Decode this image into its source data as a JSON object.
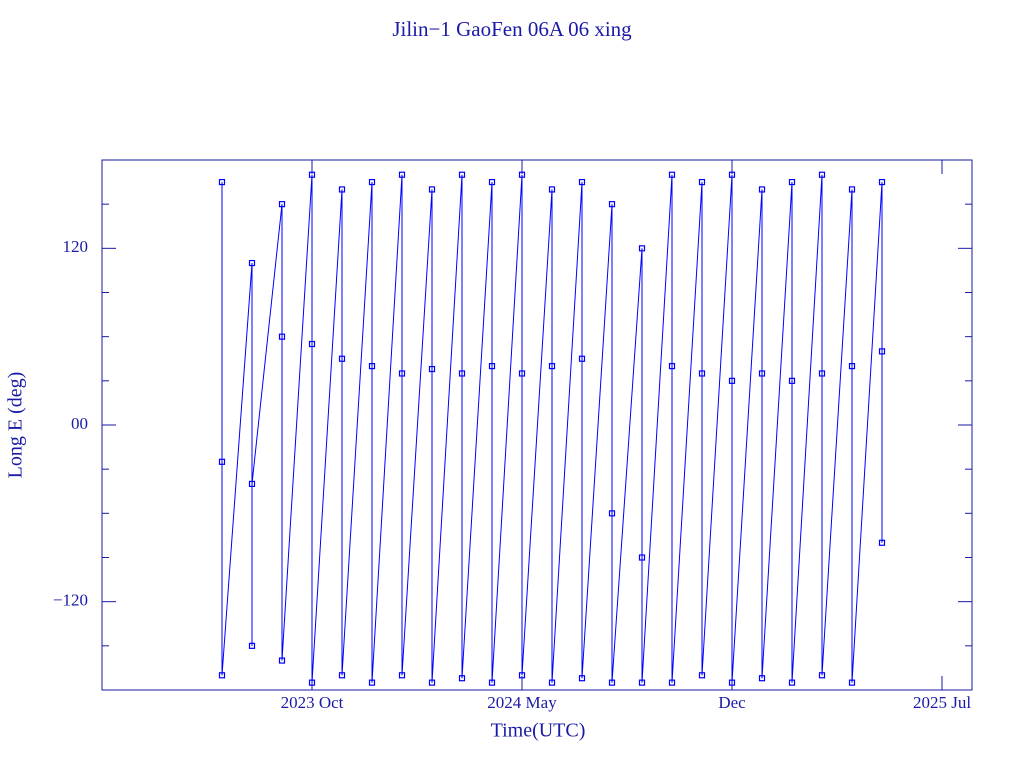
{
  "chart_data": {
    "type": "line",
    "title": "Jilin−1 GaoFen 06A 06 xing",
    "x_label": "Time(UTC)",
    "y_label": "Long E (deg)",
    "color": "#0000ff",
    "marker": "square",
    "xlim": [
      "2023-03",
      "2025-08"
    ],
    "xticks": [
      {
        "value": "2023-10",
        "label": "2023 Oct"
      },
      {
        "value": "2024-05",
        "label": "2024 May"
      },
      {
        "value": "2024-12",
        "label": "Dec"
      },
      {
        "value": "2025-07",
        "label": "2025 Jul"
      }
    ],
    "ylim": [
      -180,
      180
    ],
    "yticks": [
      {
        "value": -120,
        "label": "−120"
      },
      {
        "value": 0,
        "label": "00"
      },
      120
    ],
    "yminorticks": [
      -150,
      -90,
      -60,
      -30,
      30,
      60,
      90,
      150
    ],
    "x": [
      "2023-07",
      "2023-07",
      "2023-07",
      "2023-08",
      "2023-08",
      "2023-08",
      "2023-09",
      "2023-09",
      "2023-09",
      "2023-10",
      "2023-10",
      "2023-10",
      "2023-11",
      "2023-11",
      "2023-11",
      "2023-12",
      "2023-12",
      "2023-12",
      "2024-01",
      "2024-01",
      "2024-01",
      "2024-02",
      "2024-02",
      "2024-02",
      "2024-03",
      "2024-03",
      "2024-03",
      "2024-04",
      "2024-04",
      "2024-04",
      "2024-05",
      "2024-05",
      "2024-05",
      "2024-06",
      "2024-06",
      "2024-06",
      "2024-07",
      "2024-07",
      "2024-07",
      "2024-08",
      "2024-08",
      "2024-08",
      "2024-09",
      "2024-09",
      "2024-09",
      "2024-10",
      "2024-10",
      "2024-10",
      "2024-11",
      "2024-11",
      "2024-11",
      "2024-12",
      "2024-12",
      "2024-12",
      "2025-01",
      "2025-01",
      "2025-01",
      "2025-02",
      "2025-02",
      "2025-02",
      "2025-03",
      "2025-03",
      "2025-03",
      "2025-04",
      "2025-04",
      "2025-04",
      "2025-05",
      "2025-05",
      "2025-05"
    ],
    "values": [
      165,
      -25,
      -170,
      110,
      -150,
      -40,
      150,
      60,
      -160,
      170,
      55,
      -175,
      160,
      45,
      -170,
      165,
      40,
      -175,
      170,
      35,
      -170,
      160,
      38,
      -175,
      170,
      35,
      -172,
      165,
      40,
      -175,
      170,
      35,
      -170,
      160,
      40,
      -175,
      165,
      45,
      -172,
      150,
      -60,
      -175,
      120,
      -90,
      -175,
      170,
      40,
      -175,
      165,
      35,
      -170,
      170,
      30,
      -175,
      160,
      35,
      -172,
      165,
      30,
      -175,
      170,
      35,
      -170,
      160,
      40,
      -175,
      165,
      50,
      -80
    ]
  }
}
